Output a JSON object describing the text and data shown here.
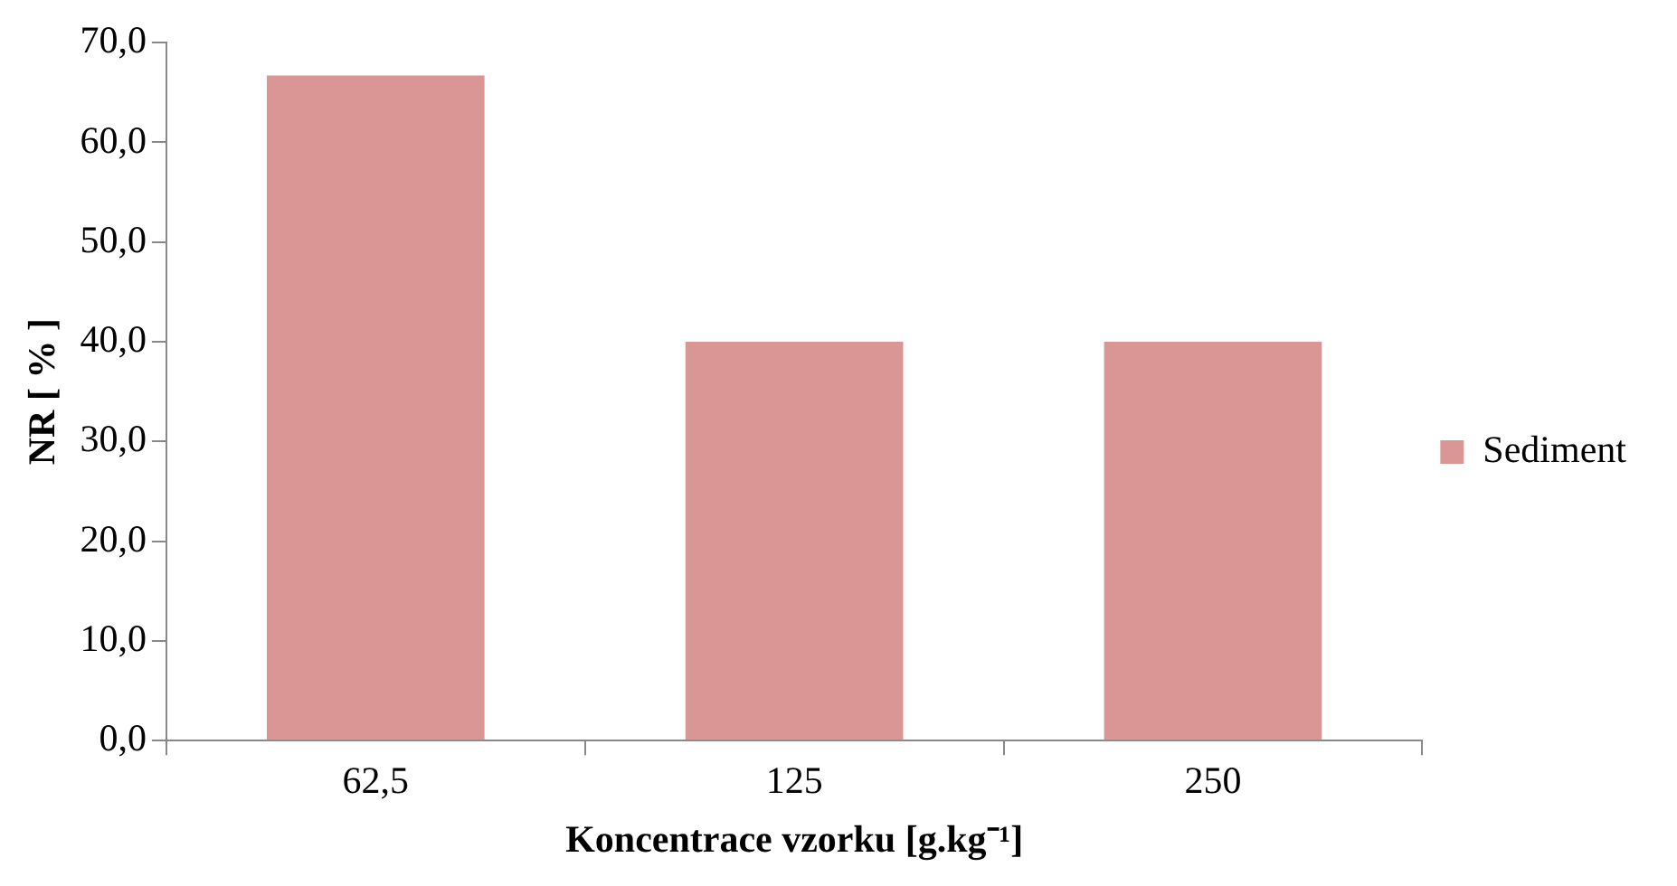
{
  "chart_data": {
    "type": "bar",
    "xlabel": "Koncentrace vzorku [g.kg⁻¹]",
    "ylabel": "NR [ % ]",
    "categories": [
      "62,5",
      "125",
      "250"
    ],
    "series": [
      {
        "name": "Sediment",
        "color": "#d99694",
        "values": [
          66.7,
          40,
          40
        ]
      }
    ],
    "ylim": [
      0,
      70
    ],
    "yticks": [
      {
        "value": 0,
        "label": "0,0"
      },
      {
        "value": 10,
        "label": "10,0"
      },
      {
        "value": 20,
        "label": "20,0"
      },
      {
        "value": 30,
        "label": "30,0"
      },
      {
        "value": 40,
        "label": "40,0"
      },
      {
        "value": 50,
        "label": "50,0"
      },
      {
        "value": 60,
        "label": "60,0"
      },
      {
        "value": 70,
        "label": "70,0"
      }
    ],
    "grid": false,
    "legend": "right"
  }
}
